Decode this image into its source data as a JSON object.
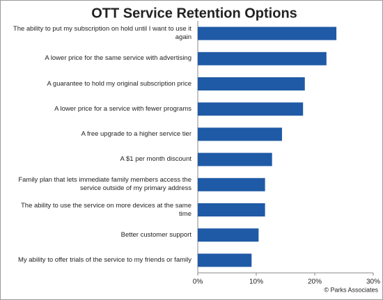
{
  "chart_data": {
    "type": "barh",
    "title": "OTT Service Retention Options",
    "categories": [
      "The ability to put my subscription on hold until I want to use it again",
      "A lower price for the same service with advertising",
      "A guarantee to hold my original subscription price",
      "A lower price for a service with fewer programs",
      "A free upgrade to a higher service tier",
      "A $1 per month discount",
      "Family plan that lets immediate family members access the service outside of my primary address",
      "The ability to use the service on more devices at the same time",
      "Better customer support",
      "My ability to offer trials of the service to my friends or family"
    ],
    "values": [
      23.7,
      22.0,
      18.3,
      18.0,
      14.4,
      12.7,
      11.5,
      11.5,
      10.4,
      9.2
    ],
    "color": "#1f5aa6",
    "xlim": [
      0,
      30
    ],
    "xticks": [
      {
        "value": 0,
        "label": "0%"
      },
      {
        "value": 10,
        "label": "10%"
      },
      {
        "value": 20,
        "label": "20%"
      },
      {
        "value": 30,
        "label": "30%"
      }
    ],
    "source": "© Parks Associates"
  }
}
